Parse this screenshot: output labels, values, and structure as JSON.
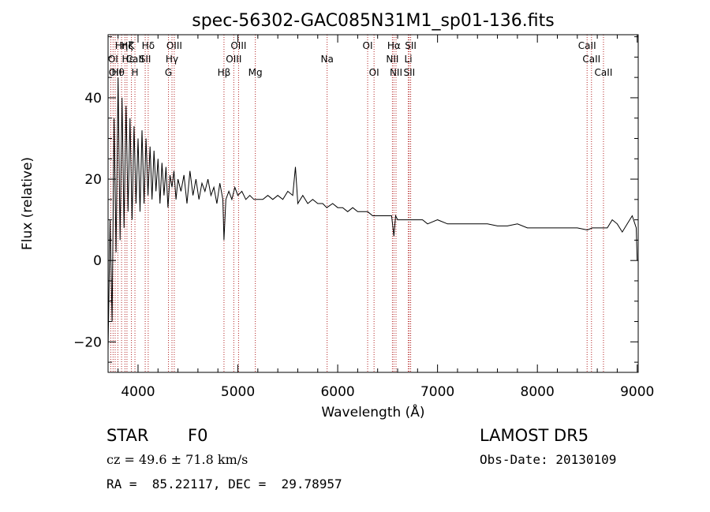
{
  "chart_data": {
    "type": "line",
    "title": "spec-56302-GAC085N31M1_sp01-136.fits",
    "xlabel": "Wavelength (Å)",
    "ylabel": "Flux (relative)",
    "xlim": [
      3700,
      9010
    ],
    "ylim": [
      -27.5,
      55.5
    ],
    "x_ticks": [
      4000,
      5000,
      6000,
      7000,
      8000,
      9000
    ],
    "y_ticks": [
      -20,
      0,
      20,
      40
    ],
    "x_tick_labels": [
      "4000",
      "5000",
      "6000",
      "7000",
      "8000",
      "9000"
    ],
    "y_tick_labels": [
      "−20",
      "0",
      "20",
      "40"
    ],
    "grid": false,
    "series": [
      {
        "color": "#000000",
        "x": [
          3700,
          3720,
          3740,
          3760,
          3780,
          3800,
          3820,
          3840,
          3860,
          3880,
          3900,
          3920,
          3940,
          3960,
          3980,
          4000,
          4020,
          4040,
          4060,
          4080,
          4100,
          4120,
          4140,
          4160,
          4180,
          4200,
          4220,
          4240,
          4260,
          4280,
          4300,
          4320,
          4340,
          4360,
          4380,
          4400,
          4430,
          4460,
          4490,
          4520,
          4550,
          4580,
          4610,
          4640,
          4670,
          4700,
          4730,
          4760,
          4790,
          4820,
          4850,
          4861,
          4880,
          4910,
          4940,
          4970,
          5000,
          5040,
          5080,
          5120,
          5160,
          5200,
          5250,
          5300,
          5350,
          5400,
          5450,
          5500,
          5550,
          5577,
          5600,
          5650,
          5700,
          5750,
          5800,
          5850,
          5890,
          5950,
          6000,
          6050,
          6100,
          6150,
          6200,
          6250,
          6300,
          6350,
          6400,
          6450,
          6500,
          6540,
          6563,
          6580,
          6600,
          6650,
          6700,
          6750,
          6800,
          6850,
          6900,
          7000,
          7100,
          7200,
          7300,
          7400,
          7500,
          7600,
          7700,
          7800,
          7900,
          8000,
          8100,
          8200,
          8300,
          8400,
          8500,
          8550,
          8600,
          8650,
          8700,
          8750,
          8800,
          8850,
          8900,
          8950,
          8990,
          9000
        ],
        "y": [
          -22,
          10,
          -15,
          35,
          2,
          45,
          5,
          40,
          8,
          38,
          12,
          35,
          10,
          33,
          14,
          30,
          12,
          32,
          14,
          30,
          16,
          28,
          15,
          27,
          17,
          25,
          14,
          24,
          16,
          23,
          13,
          21,
          18,
          22,
          15,
          20,
          17,
          21,
          14,
          22,
          16,
          20,
          15,
          19,
          17,
          20,
          16,
          18,
          14,
          19,
          15,
          5,
          15,
          17,
          15,
          18,
          16,
          17,
          15,
          16,
          15,
          15,
          15,
          16,
          15,
          16,
          15,
          17,
          16,
          23,
          14,
          16,
          14,
          15,
          14,
          14,
          13,
          14,
          13,
          13,
          12,
          13,
          12,
          12,
          12,
          11,
          11,
          11,
          11,
          11,
          6,
          11,
          10,
          10,
          10,
          10,
          10,
          10,
          9,
          10,
          9,
          9,
          9,
          9,
          9,
          8.5,
          8.5,
          9,
          8,
          8,
          8,
          8,
          8,
          8,
          7.5,
          8,
          8,
          8,
          8,
          10,
          9,
          7,
          9,
          11,
          8,
          0
        ]
      }
    ],
    "vlines": [
      {
        "x": 3727,
        "color": "#b22222"
      },
      {
        "x": 3750,
        "color": "#b22222"
      },
      {
        "x": 3771,
        "color": "#b22222"
      },
      {
        "x": 3798,
        "color": "#b22222"
      },
      {
        "x": 3835,
        "color": "#b22222"
      },
      {
        "x": 3869,
        "color": "#b22222"
      },
      {
        "x": 3889,
        "color": "#b22222"
      },
      {
        "x": 3934,
        "color": "#b22222"
      },
      {
        "x": 3969,
        "color": "#b22222"
      },
      {
        "x": 4072,
        "color": "#b22222"
      },
      {
        "x": 4102,
        "color": "#b22222"
      },
      {
        "x": 4305,
        "color": "#b22222"
      },
      {
        "x": 4340,
        "color": "#b22222"
      },
      {
        "x": 4363,
        "color": "#b22222"
      },
      {
        "x": 4861,
        "color": "#b22222"
      },
      {
        "x": 4959,
        "color": "#b22222"
      },
      {
        "x": 5007,
        "color": "#b22222"
      },
      {
        "x": 5175,
        "color": "#b22222"
      },
      {
        "x": 5894,
        "color": "#b22222"
      },
      {
        "x": 6300,
        "color": "#b22222"
      },
      {
        "x": 6364,
        "color": "#b22222"
      },
      {
        "x": 6548,
        "color": "#b22222"
      },
      {
        "x": 6563,
        "color": "#b22222"
      },
      {
        "x": 6584,
        "color": "#b22222"
      },
      {
        "x": 6707,
        "color": "#b22222"
      },
      {
        "x": 6717,
        "color": "#b22222"
      },
      {
        "x": 6731,
        "color": "#b22222"
      },
      {
        "x": 8498,
        "color": "#b22222"
      },
      {
        "x": 8542,
        "color": "#b22222"
      },
      {
        "x": 8662,
        "color": "#b22222"
      }
    ],
    "line_labels": [
      {
        "text": "Hη",
        "x": 3835,
        "row": 0
      },
      {
        "text": "Hζ",
        "x": 3890,
        "row": 0
      },
      {
        "text": "K",
        "x": 3934,
        "row": 0
      },
      {
        "text": "Hδ",
        "x": 4102,
        "row": 0
      },
      {
        "text": "OIII",
        "x": 4363,
        "row": 0
      },
      {
        "text": "OIII",
        "x": 5007,
        "row": 0
      },
      {
        "text": "OI",
        "x": 6300,
        "row": 0
      },
      {
        "text": "Hα",
        "x": 6563,
        "row": 0
      },
      {
        "text": "SII",
        "x": 6731,
        "row": 0
      },
      {
        "text": "CaII",
        "x": 8498,
        "row": 0
      },
      {
        "text": "OI",
        "x": 3750,
        "row": 1
      },
      {
        "text": "Hε",
        "x": 3900,
        "row": 1
      },
      {
        "text": "CaII",
        "x": 3969,
        "row": 1
      },
      {
        "text": "SII",
        "x": 4072,
        "row": 1
      },
      {
        "text": "Hγ",
        "x": 4340,
        "row": 1
      },
      {
        "text": "OIII",
        "x": 4959,
        "row": 1
      },
      {
        "text": "Na",
        "x": 5894,
        "row": 1
      },
      {
        "text": "NII",
        "x": 6548,
        "row": 1
      },
      {
        "text": "Li",
        "x": 6707,
        "row": 1
      },
      {
        "text": "CaII",
        "x": 8542,
        "row": 1
      },
      {
        "text": "OII",
        "x": 3771,
        "row": 2
      },
      {
        "text": "Hθ",
        "x": 3800,
        "row": 2
      },
      {
        "text": "H",
        "x": 3969,
        "row": 2
      },
      {
        "text": "G",
        "x": 4305,
        "row": 2
      },
      {
        "text": "Hβ",
        "x": 4861,
        "row": 2
      },
      {
        "text": "Mg",
        "x": 5175,
        "row": 2
      },
      {
        "text": "OI",
        "x": 6364,
        "row": 2
      },
      {
        "text": "NII",
        "x": 6584,
        "row": 2
      },
      {
        "text": "SII",
        "x": 6717,
        "row": 2
      },
      {
        "text": "CaII",
        "x": 8662,
        "row": 2
      }
    ]
  },
  "info": {
    "class_label": "STAR",
    "subclass_label": "F0",
    "redshift_line": "cz = 49.6 ± 71.8 km/s",
    "coords_line": "RA =  85.22117, DEC =  29.78957",
    "survey_label": "LAMOST DR5",
    "obs_date_line": "Obs-Date: 20130109"
  }
}
